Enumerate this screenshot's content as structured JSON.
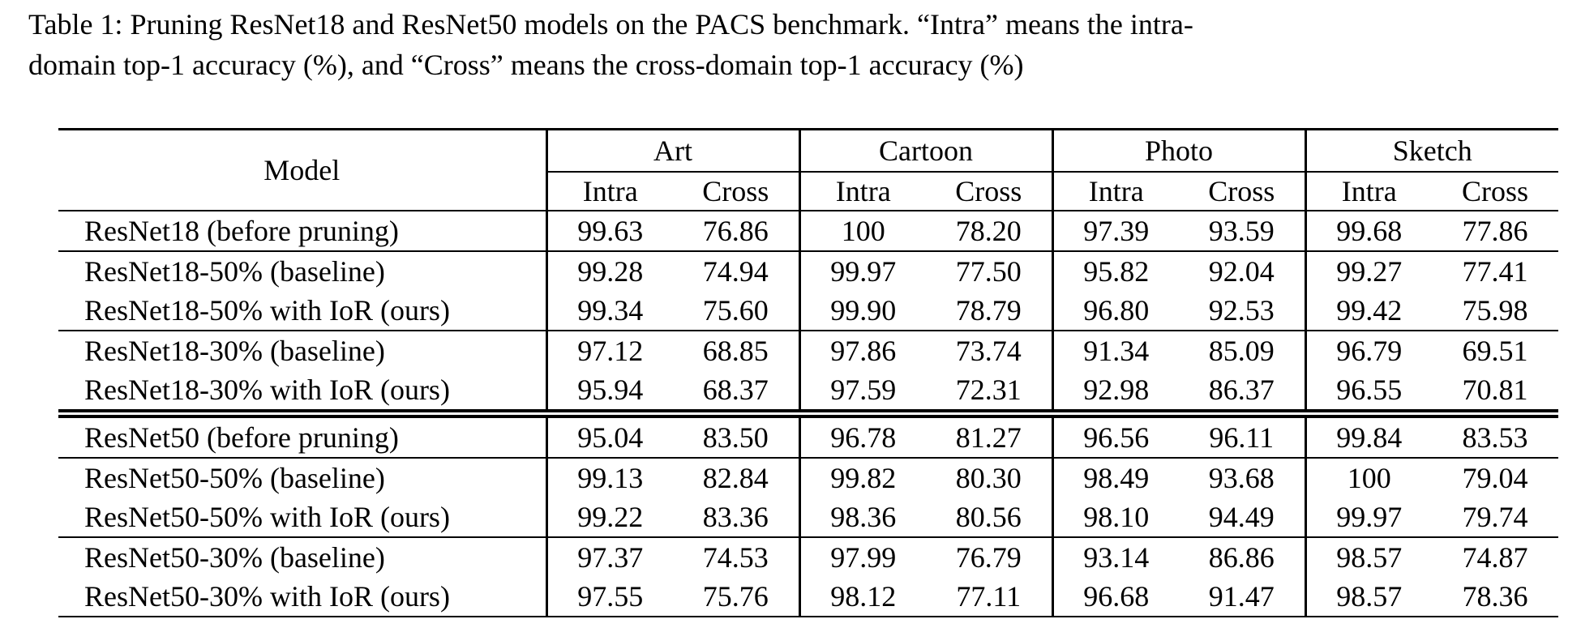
{
  "caption": "Table 1: Pruning ResNet18 and ResNet50 models on the PACS benchmark. “Intra” means the intra-domain top-1 accuracy (%), and “Cross” means the cross-domain top-1 accuracy (%)",
  "colors": {
    "text": "#000000",
    "background": "#ffffff"
  },
  "table": {
    "model_header": "Model",
    "domains": [
      "Art",
      "Cartoon",
      "Photo",
      "Sketch"
    ],
    "sub_headers": [
      "Intra",
      "Cross"
    ],
    "rows": [
      {
        "model": "ResNet18 (before pruning)",
        "values": [
          "99.63",
          "76.86",
          "100",
          "78.20",
          "97.39",
          "93.59",
          "99.68",
          "77.86"
        ],
        "bold": [],
        "rule_below": "single"
      },
      {
        "model": "ResNet18-50% (baseline)",
        "values": [
          "99.28",
          "74.94",
          "99.97",
          "77.50",
          "95.82",
          "92.04",
          "99.27",
          "77.41"
        ],
        "bold": [
          7
        ],
        "rule_below": "none"
      },
      {
        "model": "ResNet18-50% with IoR (ours)",
        "values": [
          "99.34",
          "75.60",
          "99.90",
          "78.79",
          "96.80",
          "92.53",
          "99.42",
          "75.98"
        ],
        "bold": [
          1,
          3,
          5
        ],
        "rule_below": "single"
      },
      {
        "model": "ResNet18-30% (baseline)",
        "values": [
          "97.12",
          "68.85",
          "97.86",
          "73.74",
          "91.34",
          "85.09",
          "96.79",
          "69.51"
        ],
        "bold": [
          1,
          3
        ],
        "rule_below": "none"
      },
      {
        "model": "ResNet18-30% with IoR (ours)",
        "values": [
          "95.94",
          "68.37",
          "97.59",
          "72.31",
          "92.98",
          "86.37",
          "96.55",
          "70.81"
        ],
        "bold": [
          5,
          7
        ],
        "rule_below": "double"
      },
      {
        "model": "ResNet50 (before pruning)",
        "values": [
          "95.04",
          "83.50",
          "96.78",
          "81.27",
          "96.56",
          "96.11",
          "99.84",
          "83.53"
        ],
        "bold": [],
        "rule_below": "single"
      },
      {
        "model": "ResNet50-50% (baseline)",
        "values": [
          "99.13",
          "82.84",
          "99.82",
          "80.30",
          "98.49",
          "93.68",
          "100",
          "79.04"
        ],
        "bold": [],
        "rule_below": "none"
      },
      {
        "model": "ResNet50-50% with IoR (ours)",
        "values": [
          "99.22",
          "83.36",
          "98.36",
          "80.56",
          "98.10",
          "94.49",
          "99.97",
          "79.74"
        ],
        "bold": [
          1,
          3,
          5,
          7
        ],
        "rule_below": "single"
      },
      {
        "model": "ResNet50-30% (baseline)",
        "values": [
          "97.37",
          "74.53",
          "97.99",
          "76.79",
          "93.14",
          "86.86",
          "98.57",
          "74.87"
        ],
        "bold": [],
        "rule_below": "none"
      },
      {
        "model": "ResNet50-30% with IoR (ours)",
        "values": [
          "97.55",
          "75.76",
          "98.12",
          "77.11",
          "96.68",
          "91.47",
          "98.57",
          "78.36"
        ],
        "bold": [
          1,
          3,
          5,
          7
        ],
        "rule_below": "single"
      }
    ]
  }
}
